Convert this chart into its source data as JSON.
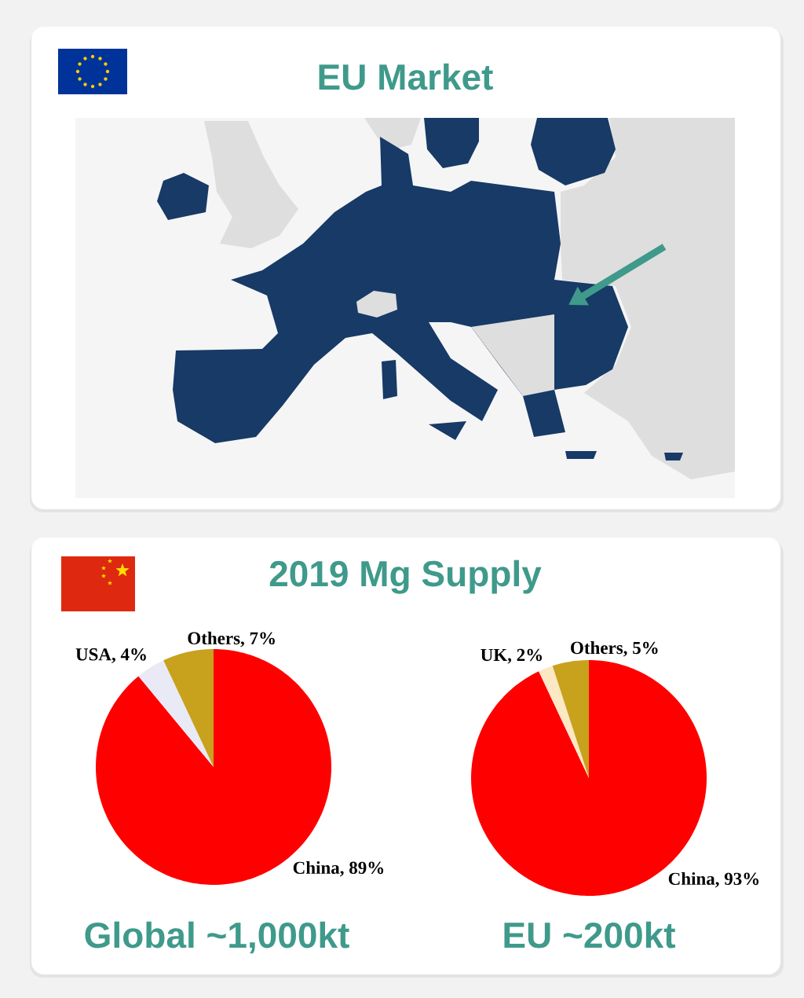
{
  "chart_data": [
    {
      "type": "other",
      "title": "EU Market"
    },
    {
      "type": "pie",
      "title": "2019 Mg Supply",
      "categories": [
        "China",
        "USA",
        "Others"
      ],
      "values": [
        89,
        4,
        7
      ],
      "colors": [
        "#ff0000",
        "#eaeaf6",
        "#c8a11d"
      ],
      "value_labels": [
        ", 89%",
        ", 4%",
        ", 7%"
      ],
      "annotations": [
        "Global ~1,000kt"
      ]
    },
    {
      "type": "pie",
      "categories": [
        "China",
        "UK",
        "Others"
      ],
      "values": [
        93,
        2,
        5
      ],
      "colors": [
        "#ff0000",
        "#fce8c4",
        "#c8a11d"
      ],
      "value_labels": [
        ", 93%",
        ", 2%",
        ", 5%"
      ],
      "annotations": [
        "EU ~200kt"
      ]
    }
  ]
}
